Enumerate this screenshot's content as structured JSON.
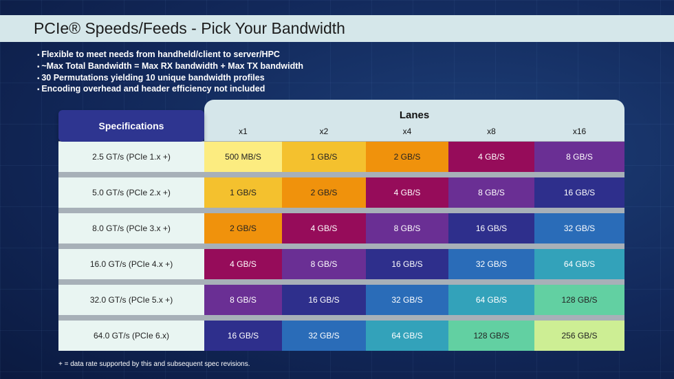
{
  "title": "PCIe® Speeds/Feeds - Pick Your Bandwidth",
  "bullets": [
    "Flexible to meet needs from handheld/client to server/HPC",
    "~Max Total Bandwidth = Max RX bandwidth + Max TX bandwidth",
    "30 Permutations yielding 10 unique bandwidth profiles",
    "Encoding overhead and header efficiency not included"
  ],
  "table": {
    "spec_header": "Specifications",
    "lanes_header": "Lanes",
    "lanes": [
      "x1",
      "x2",
      "x4",
      "x8",
      "x16"
    ],
    "rows": [
      {
        "spec": "2.5 GT/s (PCIe 1.x +)",
        "values": [
          "500 MB/S",
          "1 GB/S",
          "2 GB/S",
          "4 GB/S",
          "8 GB/S"
        ]
      },
      {
        "spec": "5.0 GT/s (PCIe 2.x +)",
        "values": [
          "1 GB/S",
          "2 GB/S",
          "4 GB/S",
          "8 GB/S",
          "16 GB/S"
        ]
      },
      {
        "spec": "8.0 GT/s (PCIe 3.x +)",
        "values": [
          "2 GB/S",
          "4 GB/S",
          "8 GB/S",
          "16 GB/S",
          "32 GB/S"
        ]
      },
      {
        "spec": "16.0 GT/s (PCIe 4.x +)",
        "values": [
          "4 GB/S",
          "8 GB/S",
          "16 GB/S",
          "32 GB/S",
          "64 GB/S"
        ]
      },
      {
        "spec": "32.0 GT/s (PCIe 5.x +)",
        "values": [
          "8 GB/S",
          "16 GB/S",
          "32 GB/S",
          "64 GB/S",
          "128 GB/S"
        ]
      },
      {
        "spec": "64.0 GT/s (PCIe 6.x)",
        "values": [
          "16 GB/S",
          "32 GB/S",
          "64 GB/S",
          "128 GB/S",
          "256 GB/S"
        ]
      }
    ]
  },
  "colors": {
    "500 MB/S": "#fcec80",
    "1 GB/S": "#f4c12e",
    "2 GB/S": "#f0920c",
    "4 GB/S": "#960c5a",
    "8 GB/S": "#6a2f94",
    "16 GB/S": "#2e2f8c",
    "32 GB/S": "#2a6cb8",
    "64 GB/S": "#33a2ba",
    "128 GB/S": "#62d0a2",
    "256 GB/S": "#cdee94"
  },
  "footnote": "+ = data rate supported by this and subsequent spec revisions."
}
